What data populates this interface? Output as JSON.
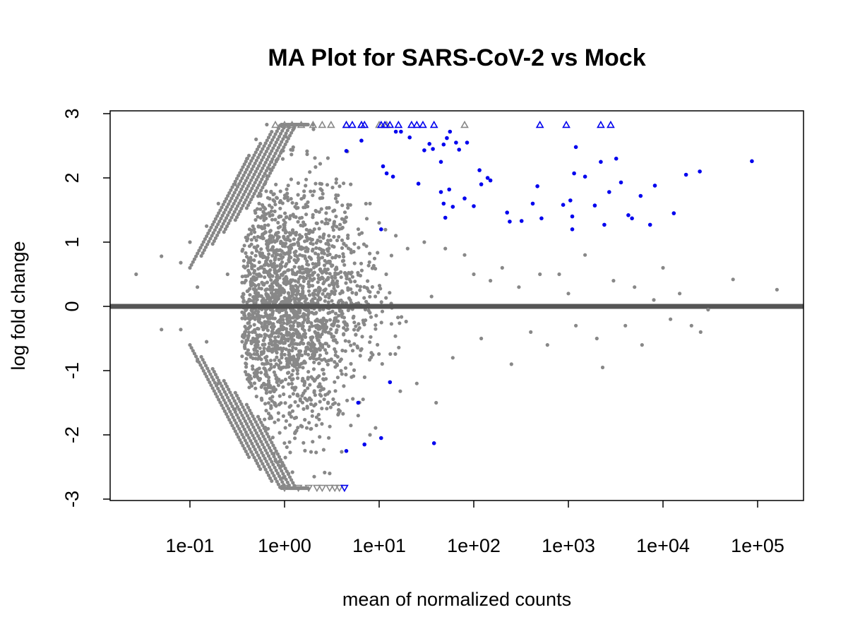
{
  "chart_data": {
    "type": "scatter",
    "title": "MA Plot for SARS-CoV-2 vs Mock",
    "xlabel": "mean of normalized counts",
    "ylabel": "log fold change",
    "x_scale": "log10",
    "xlim": [
      0.005,
      300000
    ],
    "ylim": [
      -3,
      3
    ],
    "x_ticks": [
      0.1,
      1,
      10,
      100,
      1000,
      10000,
      100000
    ],
    "x_tick_labels": [
      "1e-01",
      "1e+00",
      "1e+01",
      "1e+02",
      "1e+03",
      "1e+04",
      "1e+05"
    ],
    "y_ticks": [
      -3,
      -2,
      -1,
      0,
      1,
      2,
      3
    ],
    "y_tick_labels": [
      "-3",
      "-2",
      "-1",
      "0",
      "1",
      "2",
      "3"
    ],
    "reference_line": {
      "y": 0,
      "color": "#555555"
    },
    "colors": {
      "not_significant": "#888888",
      "significant": "#0000ee"
    },
    "series": [
      {
        "significance": "not significant",
        "color": "#888888",
        "note_dense_cloud": "approx. 3000 additional gray points densely fill x 0.5–20, y -2.5–2.8 (estimated)",
        "points": [
          [
            0.027,
            0.5
          ],
          [
            0.05,
            0.78
          ],
          [
            0.05,
            -0.36
          ],
          [
            0.08,
            0.68
          ],
          [
            0.08,
            -0.36
          ],
          [
            0.1,
            1.0
          ],
          [
            0.12,
            0.3
          ],
          [
            0.12,
            -0.85
          ],
          [
            0.15,
            1.25
          ],
          [
            0.15,
            -0.55
          ],
          [
            0.2,
            1.6
          ],
          [
            0.2,
            -1.2
          ],
          [
            0.25,
            0.5
          ],
          [
            0.3,
            1.9
          ],
          [
            0.3,
            -1.6
          ],
          [
            0.4,
            2.3
          ],
          [
            0.4,
            -2.0
          ],
          [
            0.5,
            2.6
          ],
          [
            0.5,
            -2.4
          ],
          [
            0.65,
            2.83
          ],
          [
            1.2,
            2.83
          ],
          [
            2.0,
            2.83
          ],
          [
            3.0,
            -2.6
          ],
          [
            3.5,
            1.4
          ],
          [
            5.0,
            1.9
          ],
          [
            6.0,
            -1.7
          ],
          [
            8.0,
            1.6
          ],
          [
            8.0,
            -2.0
          ],
          [
            10.0,
            1.3
          ],
          [
            15.0,
            1.1
          ],
          [
            20.0,
            0.9
          ],
          [
            25.0,
            -1.2
          ],
          [
            30.0,
            1.0
          ],
          [
            40.0,
            -1.5
          ],
          [
            50.0,
            0.9
          ],
          [
            60.0,
            -0.8
          ],
          [
            80.0,
            0.8
          ],
          [
            100.0,
            0.5
          ],
          [
            120.0,
            -0.5
          ],
          [
            150.0,
            0.4
          ],
          [
            200.0,
            0.6
          ],
          [
            250.0,
            -0.9
          ],
          [
            300.0,
            0.3
          ],
          [
            400.0,
            -0.4
          ],
          [
            500.0,
            0.5
          ],
          [
            600.0,
            -0.6
          ],
          [
            800.0,
            0.5
          ],
          [
            1000.0,
            0.2
          ],
          [
            1200.0,
            -0.3
          ],
          [
            1500.0,
            0.8
          ],
          [
            2000.0,
            -0.5
          ],
          [
            2300.0,
            -0.95
          ],
          [
            3000.0,
            0.4
          ],
          [
            4000.0,
            -0.3
          ],
          [
            5000.0,
            0.3
          ],
          [
            6000.0,
            -0.6
          ],
          [
            8000.0,
            0.1
          ],
          [
            10000.0,
            0.6
          ],
          [
            12000.0,
            -0.2
          ],
          [
            15000.0,
            0.2
          ],
          [
            20000.0,
            -0.3
          ],
          [
            25000.0,
            -0.4
          ],
          [
            30000.0,
            -0.05
          ],
          [
            55000.0,
            0.42
          ],
          [
            160000.0,
            0.26
          ]
        ],
        "up_triangles_at_top": [
          0.8,
          1.0,
          1.2,
          1.5,
          2.0,
          2.5,
          3.1,
          4.5,
          6.5,
          10.0,
          12.0,
          80.0
        ],
        "down_triangles_at_bottom": [
          1.0,
          1.4,
          1.8,
          2.2,
          2.5,
          3.0,
          3.4,
          3.8
        ]
      },
      {
        "significance": "significant",
        "color": "#0000ee",
        "points": [
          [
            4.5,
            2.42
          ],
          [
            6.5,
            2.58
          ],
          [
            11.0,
            2.18
          ],
          [
            12.0,
            2.07
          ],
          [
            14.0,
            2.02
          ],
          [
            15.0,
            2.72
          ],
          [
            17.0,
            2.72
          ],
          [
            21.0,
            2.63
          ],
          [
            26.0,
            1.91
          ],
          [
            30.0,
            2.43
          ],
          [
            34.0,
            2.53
          ],
          [
            37.0,
            2.45
          ],
          [
            45.0,
            2.25
          ],
          [
            48.0,
            2.52
          ],
          [
            52.0,
            2.62
          ],
          [
            56.0,
            2.72
          ],
          [
            65.0,
            2.55
          ],
          [
            70.0,
            2.44
          ],
          [
            85.0,
            2.55
          ],
          [
            45.0,
            1.78
          ],
          [
            48.0,
            1.6
          ],
          [
            50.0,
            1.38
          ],
          [
            55.0,
            1.82
          ],
          [
            60.0,
            1.55
          ],
          [
            80.0,
            1.68
          ],
          [
            100.0,
            1.56
          ],
          [
            115.0,
            2.12
          ],
          [
            120.0,
            1.9
          ],
          [
            140.0,
            2.0
          ],
          [
            150.0,
            1.96
          ],
          [
            225.0,
            1.46
          ],
          [
            240.0,
            1.32
          ],
          [
            320.0,
            1.33
          ],
          [
            420.0,
            1.6
          ],
          [
            470.0,
            1.87
          ],
          [
            520.0,
            1.37
          ],
          [
            880.0,
            1.58
          ],
          [
            1050.0,
            1.65
          ],
          [
            1100.0,
            1.4
          ],
          [
            1100.0,
            1.2
          ],
          [
            1150.0,
            2.07
          ],
          [
            1200.0,
            2.48
          ],
          [
            1500.0,
            2.02
          ],
          [
            1900.0,
            1.57
          ],
          [
            2200.0,
            2.25
          ],
          [
            2400.0,
            1.27
          ],
          [
            2700.0,
            1.78
          ],
          [
            3200.0,
            2.3
          ],
          [
            3600.0,
            1.93
          ],
          [
            4300.0,
            1.42
          ],
          [
            4700.0,
            1.37
          ],
          [
            5800.0,
            1.72
          ],
          [
            7300.0,
            1.27
          ],
          [
            8200.0,
            1.88
          ],
          [
            13000.0,
            1.45
          ],
          [
            17500.0,
            2.05
          ],
          [
            24500.0,
            2.1
          ],
          [
            87000.0,
            2.26
          ],
          [
            10.5,
            1.2
          ],
          [
            13.0,
            -1.18
          ],
          [
            7.0,
            -2.15
          ],
          [
            10.5,
            -2.05
          ],
          [
            38.0,
            -2.13
          ],
          [
            4.5,
            -2.25
          ],
          [
            6.0,
            -1.5
          ]
        ],
        "up_triangles_at_top": [
          4.5,
          5.2,
          6.5,
          7.0,
          10.5,
          11.5,
          13.0,
          16.0,
          22.0,
          25.0,
          29.0,
          38.0,
          500.0,
          950.0,
          2200.0,
          2800.0
        ],
        "down_triangles_at_bottom": [
          4.3
        ]
      }
    ]
  }
}
